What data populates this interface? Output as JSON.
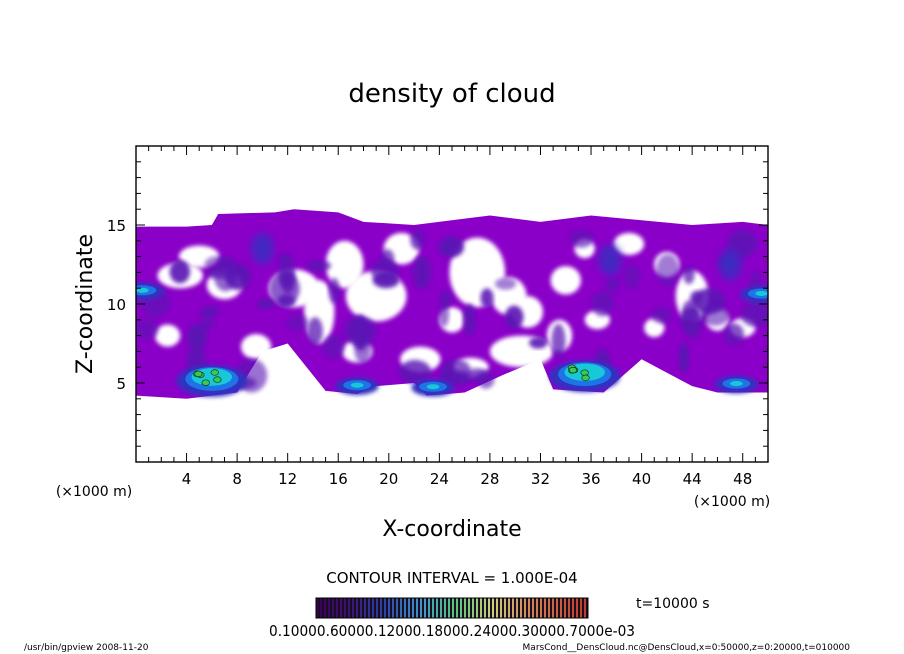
{
  "chart_data": {
    "type": "heatmap",
    "title": "density of cloud",
    "xlabel": "X-coordinate",
    "ylabel": "Z-coordinate",
    "x_unit": "(×1000 m)",
    "y_unit": "(×1000 m)",
    "xlim": [
      0,
      50
    ],
    "ylim": [
      0,
      20
    ],
    "xticks": [
      4,
      8,
      12,
      16,
      20,
      24,
      28,
      32,
      36,
      40,
      44,
      48
    ],
    "yticks": [
      5,
      10,
      15
    ],
    "contour_interval": "CONTOUR INTERVAL = 1.000E-04",
    "time_label": "t=10000 s",
    "colorbar_labels": [
      "0.1000",
      "0.6000",
      "0.1200",
      "0.1800",
      "0.2400",
      "0.3000",
      "0.7000e-03"
    ],
    "colorbar_text": "0.10000.60000.12000.18000.24000.30000.7000e-03",
    "colors": {
      "base": "#8a00c8",
      "dark": "#5a18b4",
      "deep": "#3030c0",
      "blue": "#1e74e6",
      "cyan": "#18c8d8",
      "green": "#3ac85a"
    },
    "footer_left": "/usr/bin/gpview  2008-11-20",
    "footer_right": "MarsCond__DensCloud.nc@DensCloud,x=0:50000,z=0:20000,t=010000",
    "cloud_top_profile": [
      [
        0,
        14.9
      ],
      [
        4,
        14.9
      ],
      [
        6,
        15.0
      ],
      [
        6.5,
        15.7
      ],
      [
        11,
        15.8
      ],
      [
        12.5,
        16.0
      ],
      [
        16,
        15.8
      ],
      [
        18,
        15.2
      ],
      [
        22,
        15.0
      ],
      [
        26,
        15.4
      ],
      [
        28,
        15.6
      ],
      [
        32,
        15.2
      ],
      [
        36,
        15.6
      ],
      [
        40,
        15.3
      ],
      [
        44,
        15.0
      ],
      [
        48,
        15.2
      ],
      [
        50,
        15.0
      ]
    ],
    "cloud_bottom_profile": [
      [
        0,
        4.2
      ],
      [
        4,
        4.0
      ],
      [
        8,
        4.4
      ],
      [
        10,
        7.0
      ],
      [
        12,
        7.5
      ],
      [
        14,
        5.5
      ],
      [
        15,
        4.5
      ],
      [
        17.5,
        4.3
      ],
      [
        19,
        4.8
      ],
      [
        22,
        5.0
      ],
      [
        23,
        4.2
      ],
      [
        26,
        4.4
      ],
      [
        29,
        5.5
      ],
      [
        32,
        6.5
      ],
      [
        33,
        4.6
      ],
      [
        37,
        4.4
      ],
      [
        40,
        6.5
      ],
      [
        44,
        4.8
      ],
      [
        46,
        4.4
      ],
      [
        50,
        4.4
      ]
    ],
    "high_density_regions": [
      {
        "x": 6.0,
        "z": 5.0,
        "level": "cyan"
      },
      {
        "x": 35.5,
        "z": 5.3,
        "level": "cyan"
      },
      {
        "x": 17.5,
        "z": 4.8,
        "level": "blue"
      },
      {
        "x": 47.5,
        "z": 4.9,
        "level": "blue"
      },
      {
        "x": 23.5,
        "z": 4.7,
        "level": "blue"
      },
      {
        "x": 49.5,
        "z": 10.6,
        "level": "blue"
      },
      {
        "x": 0.5,
        "z": 10.8,
        "level": "blue"
      },
      {
        "x": 10.0,
        "z": 13.5,
        "level": "deep"
      },
      {
        "x": 47.0,
        "z": 12.5,
        "level": "deep"
      },
      {
        "x": 37.5,
        "z": 12.8,
        "level": "deep"
      }
    ]
  }
}
